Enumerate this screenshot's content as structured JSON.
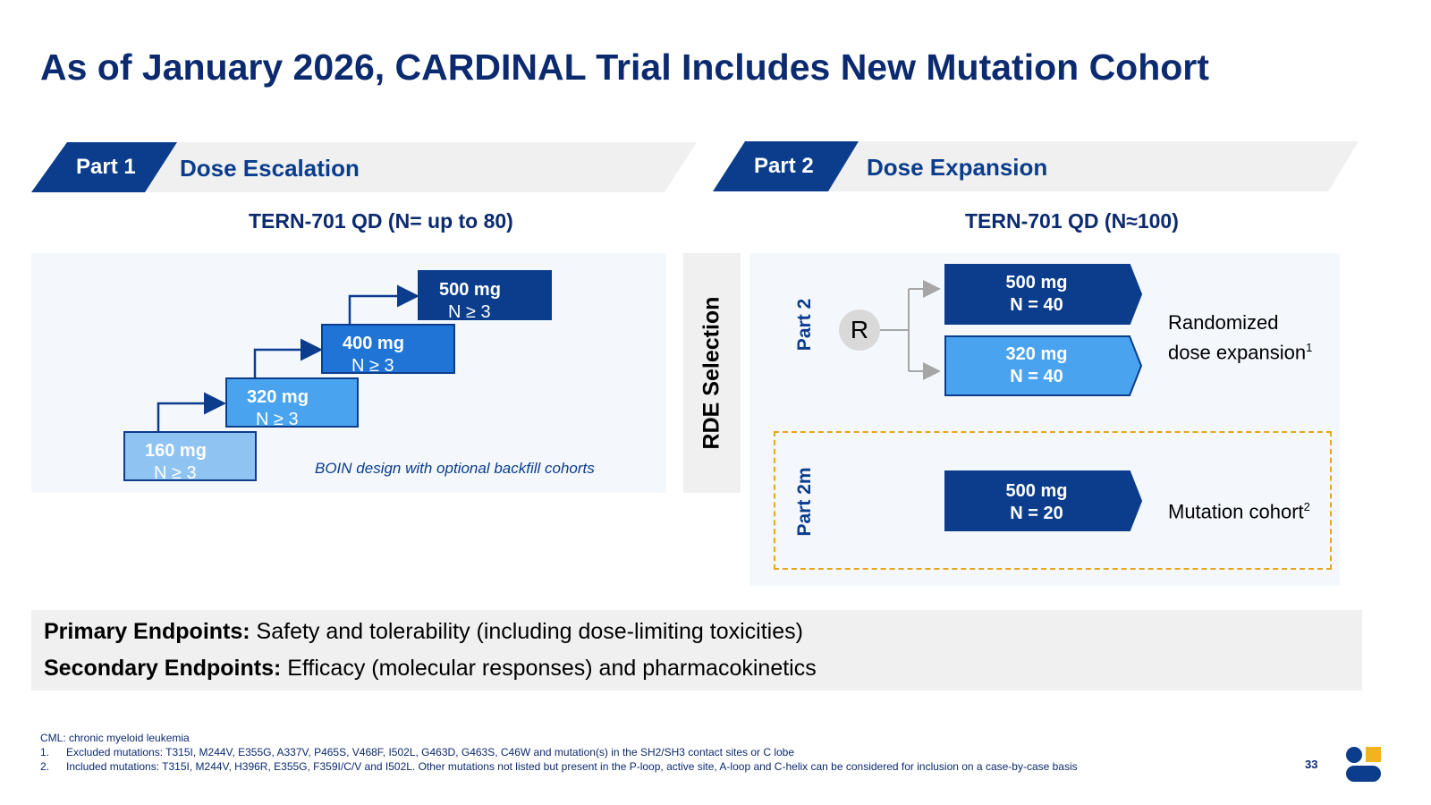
{
  "title": "As of January 2026, CARDINAL Trial Includes New Mutation Cohort",
  "part1": {
    "tag": "Part 1",
    "label": "Dose Escalation",
    "subheading": "TERN-701 QD (N= up to 80)",
    "steps": [
      {
        "dose": "160 mg",
        "n": "N ≥ 3",
        "color": "#8fc3f2"
      },
      {
        "dose": "320 mg",
        "n": "N ≥ 3",
        "color": "#4aa3ef"
      },
      {
        "dose": "400 mg",
        "n": "N ≥ 3",
        "color": "#1f74d6"
      },
      {
        "dose": "500 mg",
        "n": "N ≥ 3",
        "color": "#0b3d8c"
      }
    ],
    "design_note": "BOIN design with optional backfill cohorts"
  },
  "rde_label": "RDE Selection",
  "part2": {
    "tag": "Part 2",
    "label": "Dose Expansion",
    "subheading": "TERN-701 QD (N≈100)",
    "section_label": "Part 2",
    "randomization": "R",
    "arms": [
      {
        "dose": "500 mg",
        "n": "N = 40",
        "color": "#0b3d8c"
      },
      {
        "dose": "320 mg",
        "n": "N = 40",
        "color": "#4aa3ef"
      }
    ],
    "randomized_desc_line1": "Randomized",
    "randomized_desc_line2": "dose expansion",
    "randomized_sup": "1",
    "part2m_label": "Part 2m",
    "mutation_arm": {
      "dose": "500 mg",
      "n": "N = 20",
      "color": "#0b3d8c"
    },
    "mutation_desc": "Mutation cohort",
    "mutation_sup": "2"
  },
  "endpoints": {
    "primary_label": "Primary Endpoints:",
    "primary_text": " Safety and tolerability (including dose-limiting toxicities)",
    "secondary_label": "Secondary Endpoints:",
    "secondary_text": " Efficacy (molecular responses) and pharmacokinetics"
  },
  "footnotes": {
    "abbrev": "CML: chronic myeloid leukemia",
    "items": [
      {
        "num": "1.",
        "text": "Excluded mutations: T315I, M244V, E355G, A337V, P465S, V468F, I502L, G463D, G463S, C46W and mutation(s) in the SH2/SH3 contact sites or C lobe"
      },
      {
        "num": "2.",
        "text": "Included mutations: T315I, M244V, H396R, E355G, F359I/C/V and I502L. Other mutations not listed but present in the P-loop, active site, A-loop and C-helix can be considered for inclusion on a case-by-case basis"
      }
    ]
  },
  "page_number": "33",
  "logo_colors": {
    "blue": "#0b3d8c",
    "gold": "#f2b41c"
  }
}
